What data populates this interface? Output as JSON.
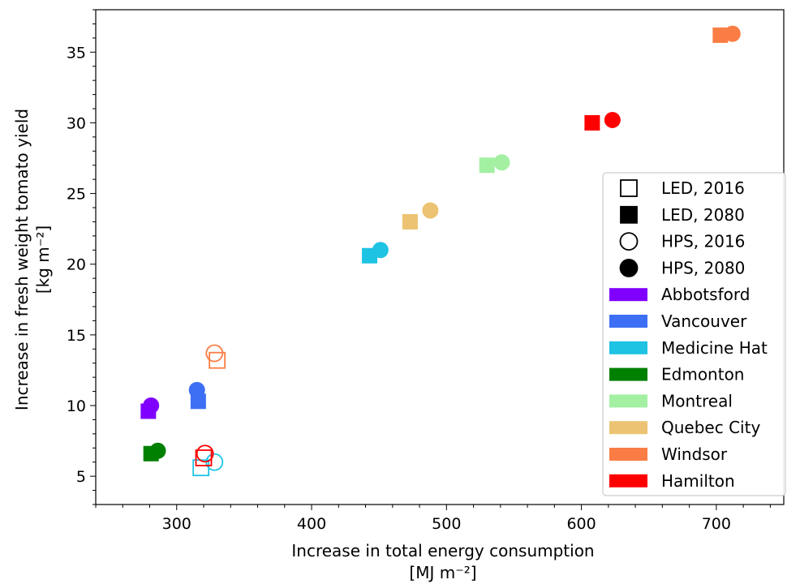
{
  "chart_data": {
    "type": "scatter",
    "xlabel": "Increase in total energy consumption",
    "xlabel_unit": "[MJ m⁻²]",
    "ylabel": "Increase in fresh weight tomato yield",
    "ylabel_unit": "[kg m⁻²]",
    "xlim": [
      240,
      750
    ],
    "ylim": [
      3,
      38
    ],
    "xticks": [
      300,
      400,
      500,
      600,
      700
    ],
    "yticks": [
      5,
      10,
      15,
      20,
      25,
      30,
      35
    ],
    "grid": false,
    "legend_position": "right",
    "marker_legend": [
      {
        "label": "LED, 2016",
        "marker": "square",
        "filled": false
      },
      {
        "label": "LED, 2080",
        "marker": "square",
        "filled": true
      },
      {
        "label": "HPS, 2016",
        "marker": "circle",
        "filled": false
      },
      {
        "label": "HPS, 2080",
        "marker": "circle",
        "filled": true
      }
    ],
    "series": [
      {
        "name": "Abbotsford",
        "color": "#8000ff",
        "points": [
          {
            "tech": "LED",
            "year": 2080,
            "x": 279,
            "y": 9.6
          },
          {
            "tech": "HPS",
            "year": 2080,
            "x": 281,
            "y": 10.0
          }
        ]
      },
      {
        "name": "Vancouver",
        "color": "#3d6ff5",
        "points": [
          {
            "tech": "LED",
            "year": 2080,
            "x": 316,
            "y": 10.3
          },
          {
            "tech": "HPS",
            "year": 2080,
            "x": 315,
            "y": 11.1
          }
        ]
      },
      {
        "name": "Medicine Hat",
        "color": "#1ec3e3",
        "points": [
          {
            "tech": "LED",
            "year": 2016,
            "x": 318,
            "y": 5.6
          },
          {
            "tech": "HPS",
            "year": 2016,
            "x": 328,
            "y": 6.0
          },
          {
            "tech": "LED",
            "year": 2080,
            "x": 443,
            "y": 20.6
          },
          {
            "tech": "HPS",
            "year": 2080,
            "x": 451,
            "y": 21.0
          }
        ]
      },
      {
        "name": "Edmonton",
        "color": "#008000",
        "points": [
          {
            "tech": "LED",
            "year": 2080,
            "x": 281,
            "y": 6.6
          },
          {
            "tech": "HPS",
            "year": 2080,
            "x": 286,
            "y": 6.8
          }
        ]
      },
      {
        "name": "Montreal",
        "color": "#a3f0a3",
        "points": [
          {
            "tech": "LED",
            "year": 2080,
            "x": 530,
            "y": 27.0
          },
          {
            "tech": "HPS",
            "year": 2080,
            "x": 541,
            "y": 27.2
          }
        ]
      },
      {
        "name": "Quebec City",
        "color": "#ecc372",
        "points": [
          {
            "tech": "LED",
            "year": 2080,
            "x": 473,
            "y": 23.0
          },
          {
            "tech": "HPS",
            "year": 2080,
            "x": 488,
            "y": 23.8
          }
        ]
      },
      {
        "name": "Windsor",
        "color": "#fa7d45",
        "points": [
          {
            "tech": "LED",
            "year": 2016,
            "x": 330,
            "y": 13.2
          },
          {
            "tech": "HPS",
            "year": 2016,
            "x": 328,
            "y": 13.7
          },
          {
            "tech": "LED",
            "year": 2080,
            "x": 703,
            "y": 36.2
          },
          {
            "tech": "HPS",
            "year": 2080,
            "x": 712,
            "y": 36.3
          }
        ]
      },
      {
        "name": "Hamilton",
        "color": "#ff0000",
        "points": [
          {
            "tech": "LED",
            "year": 2016,
            "x": 320,
            "y": 6.3
          },
          {
            "tech": "HPS",
            "year": 2016,
            "x": 321,
            "y": 6.6
          },
          {
            "tech": "LED",
            "year": 2080,
            "x": 608,
            "y": 30.0
          },
          {
            "tech": "HPS",
            "year": 2080,
            "x": 623,
            "y": 30.2
          }
        ]
      }
    ]
  }
}
